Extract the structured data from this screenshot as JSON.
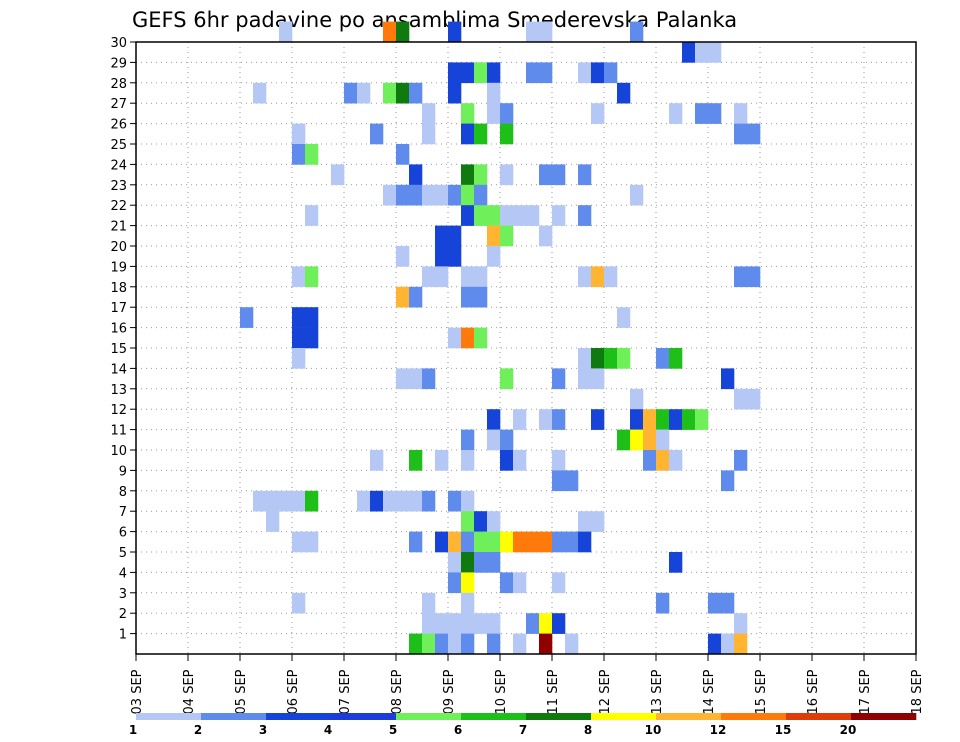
{
  "chart_data": {
    "type": "heatmap",
    "title": "GEFS 6hr padavine po ansamblima Smederevska Palanka",
    "xlabel": "",
    "ylabel": "",
    "x_ticks": [
      "03 SEP",
      "04 SEP",
      "05 SEP",
      "06 SEP",
      "07 SEP",
      "08 SEP",
      "09 SEP",
      "10 SEP",
      "11 SEP",
      "12 SEP",
      "13 SEP",
      "14 SEP",
      "15 SEP",
      "16 SEP",
      "17 SEP",
      "18 SEP"
    ],
    "y_ticks": [
      "1",
      "2",
      "3",
      "4",
      "5",
      "6",
      "7",
      "8",
      "9",
      "10",
      "11",
      "12",
      "13",
      "14",
      "15",
      "16",
      "17",
      "18",
      "19",
      "20",
      "21",
      "22",
      "23",
      "24",
      "25",
      "26",
      "27",
      "28",
      "29",
      "30"
    ],
    "x_unit": "6h step from 03 SEP 00Z (4 steps per day)",
    "ylim": [
      0,
      30
    ],
    "grid": true,
    "legend": {
      "position": "bottom",
      "labels": [
        "1",
        "2",
        "3",
        "4",
        "5",
        "6",
        "7",
        "8",
        "10",
        "12",
        "15",
        "20"
      ],
      "colors": [
        "#b5c8f5",
        "#5f8cec",
        "#1744d8",
        "#1d3cdc",
        "#6ff05a",
        "#1fbf1a",
        "#0f7a0f",
        "#ffff00",
        "#ffb432",
        "#ff7a0a",
        "#e03c0a",
        "#900000"
      ]
    },
    "cells": [
      [
        11,
        30,
        0
      ],
      [
        19,
        30,
        9
      ],
      [
        20,
        30,
        6
      ],
      [
        24,
        30,
        2
      ],
      [
        30,
        30,
        0
      ],
      [
        31,
        30,
        0
      ],
      [
        38,
        30,
        1
      ],
      [
        42,
        29,
        2
      ],
      [
        43,
        29,
        0
      ],
      [
        44,
        29,
        0
      ],
      [
        24,
        28,
        2
      ],
      [
        25,
        28,
        2
      ],
      [
        26,
        28,
        4
      ],
      [
        27,
        28,
        2
      ],
      [
        30,
        28,
        1
      ],
      [
        31,
        28,
        1
      ],
      [
        34,
        28,
        0
      ],
      [
        35,
        28,
        2
      ],
      [
        36,
        28,
        1
      ],
      [
        9,
        27,
        0
      ],
      [
        16,
        27,
        1
      ],
      [
        17,
        27,
        0
      ],
      [
        19,
        27,
        4
      ],
      [
        20,
        27,
        6
      ],
      [
        21,
        27,
        1
      ],
      [
        24,
        27,
        2
      ],
      [
        27,
        27,
        0
      ],
      [
        37,
        27,
        2
      ],
      [
        22,
        26,
        0
      ],
      [
        25,
        26,
        4
      ],
      [
        27,
        26,
        0
      ],
      [
        28,
        26,
        1
      ],
      [
        35,
        26,
        0
      ],
      [
        41,
        26,
        0
      ],
      [
        43,
        26,
        1
      ],
      [
        44,
        26,
        1
      ],
      [
        46,
        26,
        0
      ],
      [
        12,
        25,
        0
      ],
      [
        18,
        25,
        1
      ],
      [
        22,
        25,
        0
      ],
      [
        25,
        25,
        2
      ],
      [
        26,
        25,
        5
      ],
      [
        28,
        25,
        5
      ],
      [
        46,
        25,
        1
      ],
      [
        47,
        25,
        1
      ],
      [
        12,
        24,
        1
      ],
      [
        13,
        24,
        4
      ],
      [
        20,
        24,
        1
      ],
      [
        15,
        23,
        0
      ],
      [
        21,
        23,
        2
      ],
      [
        25,
        23,
        6
      ],
      [
        26,
        23,
        4
      ],
      [
        28,
        23,
        0
      ],
      [
        31,
        23,
        1
      ],
      [
        32,
        23,
        1
      ],
      [
        34,
        23,
        1
      ],
      [
        19,
        22,
        0
      ],
      [
        20,
        22,
        1
      ],
      [
        21,
        22,
        1
      ],
      [
        22,
        22,
        0
      ],
      [
        23,
        22,
        0
      ],
      [
        24,
        22,
        1
      ],
      [
        25,
        22,
        4
      ],
      [
        26,
        22,
        1
      ],
      [
        38,
        22,
        0
      ],
      [
        13,
        21,
        0
      ],
      [
        25,
        21,
        2
      ],
      [
        26,
        21,
        4
      ],
      [
        27,
        21,
        4
      ],
      [
        28,
        21,
        0
      ],
      [
        29,
        21,
        0
      ],
      [
        30,
        21,
        0
      ],
      [
        32,
        21,
        0
      ],
      [
        34,
        21,
        1
      ],
      [
        23,
        20,
        2
      ],
      [
        24,
        20,
        2
      ],
      [
        27,
        20,
        8
      ],
      [
        28,
        20,
        4
      ],
      [
        31,
        20,
        0
      ],
      [
        20,
        19,
        0
      ],
      [
        23,
        19,
        2
      ],
      [
        24,
        19,
        2
      ],
      [
        27,
        19,
        0
      ],
      [
        12,
        18,
        0
      ],
      [
        13,
        18,
        4
      ],
      [
        22,
        18,
        0
      ],
      [
        23,
        18,
        0
      ],
      [
        25,
        18,
        0
      ],
      [
        26,
        18,
        0
      ],
      [
        34,
        18,
        0
      ],
      [
        35,
        18,
        8
      ],
      [
        36,
        18,
        0
      ],
      [
        46,
        18,
        1
      ],
      [
        47,
        18,
        1
      ],
      [
        20,
        17,
        8
      ],
      [
        21,
        17,
        1
      ],
      [
        25,
        17,
        1
      ],
      [
        26,
        17,
        1
      ],
      [
        8,
        16,
        1
      ],
      [
        12,
        16,
        2
      ],
      [
        13,
        16,
        2
      ],
      [
        37,
        16,
        0
      ],
      [
        12,
        15,
        2
      ],
      [
        13,
        15,
        2
      ],
      [
        24,
        15,
        0
      ],
      [
        25,
        15,
        9
      ],
      [
        26,
        15,
        4
      ],
      [
        12,
        14,
        0
      ],
      [
        34,
        14,
        0
      ],
      [
        35,
        14,
        6
      ],
      [
        36,
        14,
        5
      ],
      [
        37,
        14,
        4
      ],
      [
        40,
        14,
        1
      ],
      [
        41,
        14,
        5
      ],
      [
        20,
        13,
        0
      ],
      [
        21,
        13,
        0
      ],
      [
        22,
        13,
        1
      ],
      [
        28,
        13,
        4
      ],
      [
        32,
        13,
        1
      ],
      [
        34,
        13,
        0
      ],
      [
        35,
        13,
        0
      ],
      [
        45,
        13,
        2
      ],
      [
        38,
        12,
        0
      ],
      [
        46,
        12,
        0
      ],
      [
        47,
        12,
        0
      ],
      [
        27,
        11,
        2
      ],
      [
        29,
        11,
        0
      ],
      [
        31,
        11,
        0
      ],
      [
        32,
        11,
        1
      ],
      [
        35,
        11,
        2
      ],
      [
        38,
        11,
        2
      ],
      [
        39,
        11,
        8
      ],
      [
        40,
        11,
        5
      ],
      [
        41,
        11,
        2
      ],
      [
        42,
        11,
        5
      ],
      [
        43,
        11,
        4
      ],
      [
        25,
        10,
        1
      ],
      [
        27,
        10,
        0
      ],
      [
        28,
        10,
        1
      ],
      [
        37,
        10,
        5
      ],
      [
        38,
        10,
        7
      ],
      [
        39,
        10,
        8
      ],
      [
        40,
        10,
        0
      ],
      [
        18,
        9,
        0
      ],
      [
        21,
        9,
        5
      ],
      [
        23,
        9,
        0
      ],
      [
        25,
        9,
        0
      ],
      [
        28,
        9,
        2
      ],
      [
        29,
        9,
        0
      ],
      [
        32,
        9,
        0
      ],
      [
        39,
        9,
        1
      ],
      [
        40,
        9,
        8
      ],
      [
        41,
        9,
        0
      ],
      [
        46,
        9,
        1
      ],
      [
        32,
        8,
        1
      ],
      [
        33,
        8,
        1
      ],
      [
        45,
        8,
        1
      ],
      [
        9,
        7,
        0
      ],
      [
        10,
        7,
        0
      ],
      [
        11,
        7,
        0
      ],
      [
        12,
        7,
        0
      ],
      [
        13,
        7,
        5
      ],
      [
        17,
        7,
        0
      ],
      [
        18,
        7,
        2
      ],
      [
        19,
        7,
        0
      ],
      [
        20,
        7,
        0
      ],
      [
        21,
        7,
        0
      ],
      [
        22,
        7,
        1
      ],
      [
        24,
        7,
        1
      ],
      [
        25,
        7,
        0
      ],
      [
        10,
        6,
        0
      ],
      [
        25,
        6,
        4
      ],
      [
        26,
        6,
        2
      ],
      [
        27,
        6,
        0
      ],
      [
        34,
        6,
        0
      ],
      [
        35,
        6,
        0
      ],
      [
        12,
        5,
        0
      ],
      [
        13,
        5,
        0
      ],
      [
        21,
        5,
        1
      ],
      [
        23,
        5,
        2
      ],
      [
        24,
        5,
        8
      ],
      [
        25,
        5,
        1
      ],
      [
        26,
        5,
        4
      ],
      [
        27,
        5,
        4
      ],
      [
        28,
        5,
        7
      ],
      [
        29,
        5,
        9
      ],
      [
        30,
        5,
        9
      ],
      [
        31,
        5,
        9
      ],
      [
        32,
        5,
        1
      ],
      [
        33,
        5,
        1
      ],
      [
        34,
        5,
        2
      ],
      [
        24,
        4,
        0
      ],
      [
        25,
        4,
        6
      ],
      [
        26,
        4,
        1
      ],
      [
        27,
        4,
        1
      ],
      [
        41,
        4,
        2
      ],
      [
        24,
        3,
        1
      ],
      [
        25,
        3,
        7
      ],
      [
        28,
        3,
        1
      ],
      [
        29,
        3,
        0
      ],
      [
        32,
        3,
        0
      ],
      [
        12,
        2,
        0
      ],
      [
        22,
        2,
        0
      ],
      [
        25,
        2,
        0
      ],
      [
        40,
        2,
        1
      ],
      [
        44,
        2,
        1
      ],
      [
        45,
        2,
        1
      ],
      [
        22,
        1,
        0
      ],
      [
        23,
        1,
        0
      ],
      [
        24,
        1,
        0
      ],
      [
        25,
        1,
        0
      ],
      [
        26,
        1,
        0
      ],
      [
        27,
        1,
        0
      ],
      [
        30,
        1,
        1
      ],
      [
        31,
        1,
        7
      ],
      [
        32,
        1,
        2
      ],
      [
        46,
        1,
        0
      ],
      [
        21,
        0,
        5
      ],
      [
        22,
        0,
        4
      ],
      [
        23,
        0,
        1
      ],
      [
        24,
        0,
        0
      ],
      [
        25,
        0,
        1
      ],
      [
        27,
        0,
        1
      ],
      [
        29,
        0,
        0
      ],
      [
        31,
        0,
        11
      ],
      [
        33,
        0,
        0
      ],
      [
        44,
        0,
        2
      ],
      [
        45,
        0,
        0
      ],
      [
        46,
        0,
        8
      ]
    ]
  }
}
